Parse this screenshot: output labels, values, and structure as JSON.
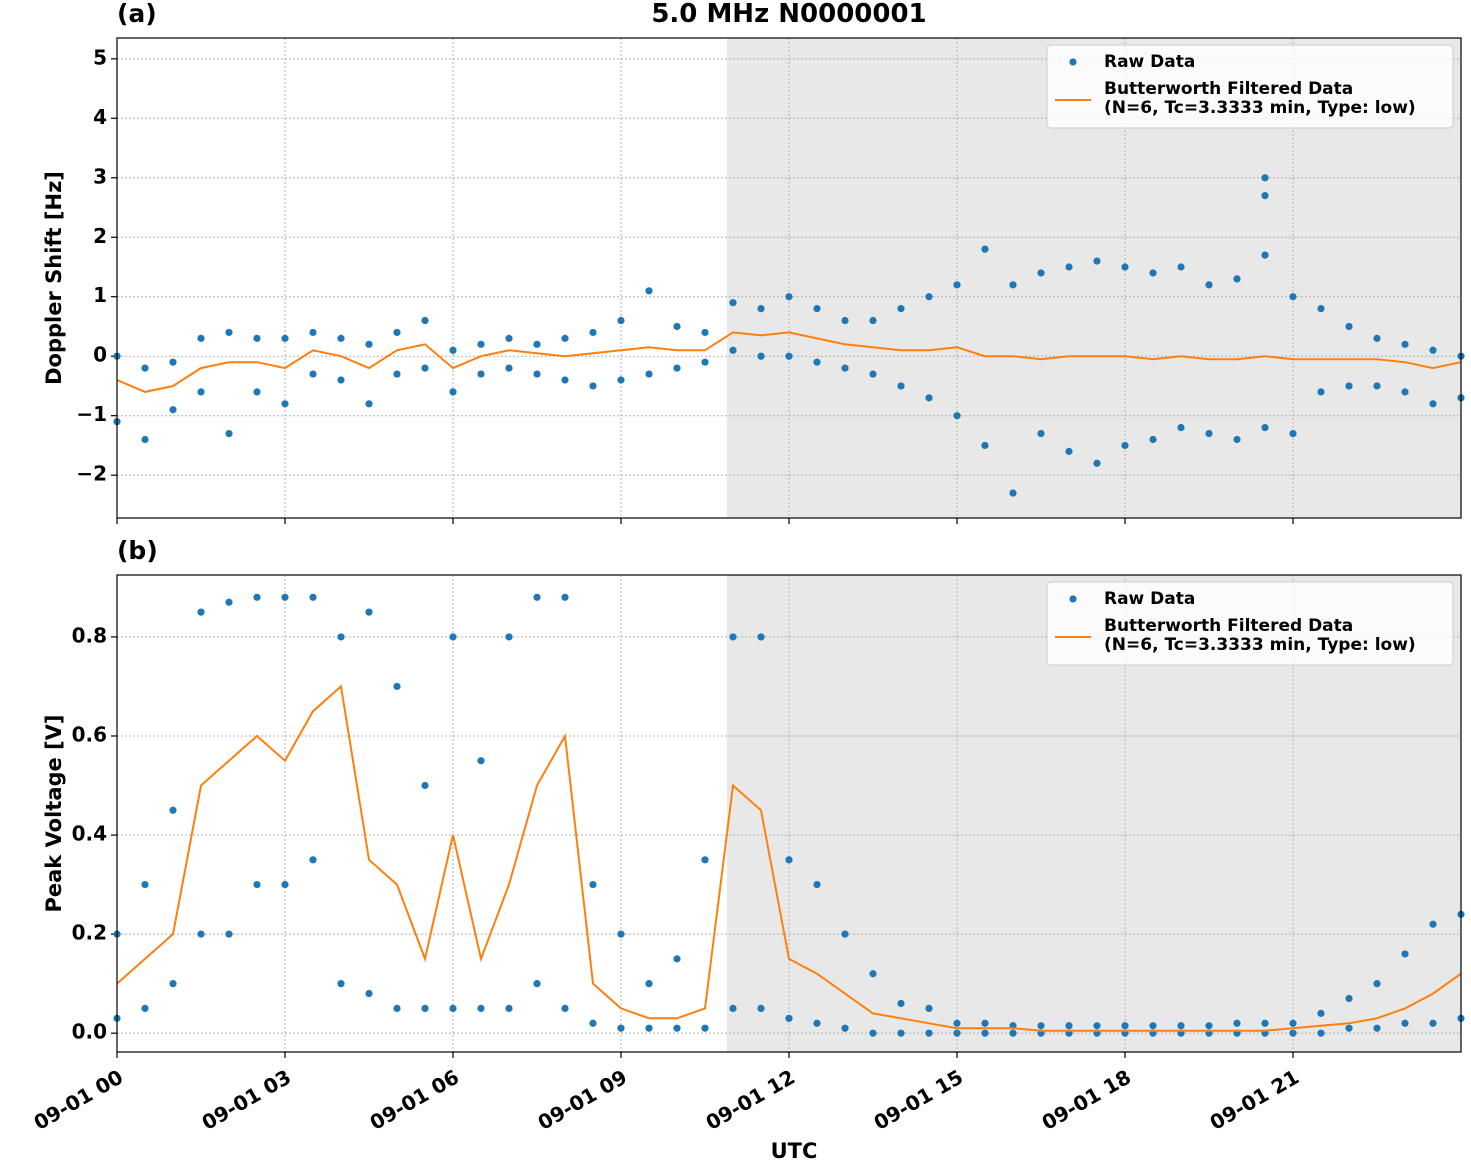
{
  "chart_data": [
    {
      "type": "scatter",
      "label": "(a)",
      "title": "5.0 MHz N0000001",
      "ylabel": "Doppler Shift [Hz]",
      "xlim": [
        0,
        24
      ],
      "xticks": [
        0,
        3,
        6,
        9,
        12,
        15,
        18,
        21
      ],
      "ylim": [
        -2.72,
        5.35
      ],
      "yticks": [
        {
          "value": -2,
          "label": "−2"
        },
        {
          "value": -1,
          "label": "−1"
        },
        0,
        1,
        2,
        3,
        4,
        5
      ],
      "grid": true,
      "legend": "upper right",
      "shade": {
        "xlim": [
          10.89,
          24
        ],
        "color": "#e8e8e8"
      },
      "series": [
        {
          "name": "Raw Data",
          "color": "#1f77b4",
          "mode": "markers",
          "x": [
            0,
            0.5,
            1,
            1.5,
            2,
            2.5,
            3,
            3.5,
            4,
            4.5,
            5,
            5.5,
            6,
            6.5,
            7,
            7.5,
            8,
            8.5,
            9,
            9.5,
            10,
            10.5,
            11,
            11.5,
            12,
            12.5,
            13,
            13.5,
            14,
            14.5,
            15,
            15.5,
            16,
            16.5,
            17,
            17.5,
            18,
            18.5,
            19,
            19.5,
            20,
            20.5,
            21,
            21.5,
            22,
            22.5,
            23,
            23.5,
            24,
            0,
            0.5,
            1,
            1.5,
            2,
            2.5,
            3,
            3.5,
            4,
            4.5,
            5,
            5.5,
            6,
            6.5,
            7,
            7.5,
            8,
            8.5,
            9,
            9.5,
            10,
            10.5,
            11,
            11.5,
            12,
            12.5,
            13,
            13.5,
            14,
            14.5,
            15,
            15.5,
            16,
            16.5,
            17,
            17.5,
            18,
            18.5,
            19,
            19.5,
            20,
            20.5,
            21,
            21.5,
            22,
            22.5,
            23,
            23.5,
            24,
            20.5,
            20.5
          ],
          "values": [
            0.0,
            -0.2,
            -0.1,
            0.3,
            0.4,
            0.3,
            0.3,
            0.4,
            0.3,
            0.2,
            0.4,
            0.6,
            0.1,
            0.2,
            0.3,
            0.2,
            0.3,
            0.4,
            0.6,
            1.1,
            0.5,
            0.4,
            0.9,
            0.8,
            1.0,
            0.8,
            0.6,
            0.6,
            0.8,
            1.0,
            1.2,
            1.8,
            1.2,
            1.4,
            1.5,
            1.6,
            1.5,
            1.4,
            1.5,
            1.2,
            1.3,
            1.7,
            1.0,
            0.8,
            0.5,
            0.3,
            0.2,
            0.1,
            0.0,
            -1.1,
            -1.4,
            -0.9,
            -0.6,
            -1.3,
            -0.6,
            -0.8,
            -0.3,
            -0.4,
            -0.8,
            -0.3,
            -0.2,
            -0.6,
            -0.3,
            -0.2,
            -0.3,
            -0.4,
            -0.5,
            -0.4,
            -0.3,
            -0.2,
            -0.1,
            0.1,
            0.0,
            0.0,
            -0.1,
            -0.2,
            -0.3,
            -0.5,
            -0.7,
            -1.0,
            -1.5,
            -2.3,
            -1.3,
            -1.6,
            -1.8,
            -1.5,
            -1.4,
            -1.2,
            -1.3,
            -1.4,
            -1.2,
            -1.3,
            -0.6,
            -0.5,
            -0.5,
            -0.6,
            -0.8,
            -0.7,
            3.0,
            2.7
          ]
        },
        {
          "name": "Butterworth Filtered Data\n(N=6, Tc=3.3333 min, Type: low)",
          "color": "#ff7f0e",
          "mode": "line",
          "x": [
            0,
            0.5,
            1,
            1.5,
            2,
            2.5,
            3,
            3.5,
            4,
            4.5,
            5,
            5.5,
            6,
            6.5,
            7,
            7.5,
            8,
            8.5,
            9,
            9.5,
            10,
            10.5,
            11,
            11.5,
            12,
            12.5,
            13,
            13.5,
            14,
            14.5,
            15,
            15.5,
            16,
            16.5,
            17,
            17.5,
            18,
            18.5,
            19,
            19.5,
            20,
            20.5,
            21,
            21.5,
            22,
            22.5,
            23,
            23.5,
            24
          ],
          "values": [
            -0.4,
            -0.6,
            -0.5,
            -0.2,
            -0.1,
            -0.1,
            -0.2,
            0.1,
            0.0,
            -0.2,
            0.1,
            0.2,
            -0.2,
            0.0,
            0.1,
            0.05,
            0.0,
            0.05,
            0.1,
            0.15,
            0.1,
            0.1,
            0.4,
            0.35,
            0.4,
            0.3,
            0.2,
            0.15,
            0.1,
            0.1,
            0.15,
            0.0,
            0.0,
            -0.05,
            0.0,
            0.0,
            0.0,
            -0.05,
            0.0,
            -0.05,
            -0.05,
            0.0,
            -0.05,
            -0.05,
            -0.05,
            -0.05,
            -0.1,
            -0.2,
            -0.1
          ]
        }
      ]
    },
    {
      "type": "scatter",
      "label": "(b)",
      "ylabel": "Peak Voltage [V]",
      "xlabel": "UTC",
      "xlim": [
        0,
        24
      ],
      "xticks": [
        {
          "value": 0,
          "label": "09-01 00"
        },
        {
          "value": 3,
          "label": "09-01 03"
        },
        {
          "value": 6,
          "label": "09-01 06"
        },
        {
          "value": 9,
          "label": "09-01 09"
        },
        {
          "value": 12,
          "label": "09-01 12"
        },
        {
          "value": 15,
          "label": "09-01 15"
        },
        {
          "value": 18,
          "label": "09-01 18"
        },
        {
          "value": 21,
          "label": "09-01 21"
        }
      ],
      "ylim": [
        -0.038,
        0.925
      ],
      "yticks": [
        {
          "value": 0,
          "label": "0.0"
        },
        0.2,
        0.4,
        0.6,
        0.8
      ],
      "grid": true,
      "legend": "upper right",
      "shade": {
        "xlim": [
          10.89,
          24
        ],
        "color": "#e8e8e8"
      },
      "series": [
        {
          "name": "Raw Data",
          "color": "#1f77b4",
          "mode": "markers",
          "x": [
            0,
            0.5,
            1,
            1.5,
            2,
            2.5,
            3,
            3.5,
            4,
            4.5,
            5,
            5.5,
            6,
            6.5,
            7,
            7.5,
            8,
            8.5,
            9,
            9.5,
            10,
            10.5,
            11,
            11.5,
            12,
            12.5,
            13,
            13.5,
            14,
            14.5,
            15,
            15.5,
            16,
            16.5,
            17,
            17.5,
            18,
            18.5,
            19,
            19.5,
            20,
            20.5,
            21,
            21.5,
            22,
            22.5,
            23,
            23.5,
            24,
            0,
            0.5,
            1,
            1.5,
            2,
            2.5,
            3,
            3.5,
            4,
            4.5,
            5,
            5.5,
            6,
            6.5,
            7,
            7.5,
            8,
            8.5,
            9,
            9.5,
            10,
            10.5,
            11,
            11.5,
            12,
            12.5,
            13,
            13.5,
            14,
            14.5,
            15,
            15.5,
            16,
            16.5,
            17,
            17.5,
            18,
            18.5,
            19,
            19.5,
            20,
            20.5,
            21,
            21.5,
            22,
            22.5,
            23,
            23.5,
            24
          ],
          "values": [
            0.2,
            0.3,
            0.45,
            0.85,
            0.87,
            0.88,
            0.88,
            0.88,
            0.8,
            0.85,
            0.7,
            0.5,
            0.8,
            0.55,
            0.8,
            0.88,
            0.88,
            0.3,
            0.2,
            0.1,
            0.15,
            0.35,
            0.8,
            0.8,
            0.35,
            0.3,
            0.2,
            0.12,
            0.06,
            0.05,
            0.02,
            0.02,
            0.015,
            0.015,
            0.015,
            0.015,
            0.015,
            0.015,
            0.015,
            0.015,
            0.02,
            0.02,
            0.02,
            0.04,
            0.07,
            0.1,
            0.16,
            0.22,
            0.24,
            0.03,
            0.05,
            0.1,
            0.2,
            0.2,
            0.3,
            0.3,
            0.35,
            0.1,
            0.08,
            0.05,
            0.05,
            0.05,
            0.05,
            0.05,
            0.1,
            0.05,
            0.02,
            0.01,
            0.01,
            0.01,
            0.01,
            0.05,
            0.05,
            0.03,
            0.02,
            0.01,
            0.0,
            0.0,
            0.0,
            0.0,
            0.0,
            0.0,
            0.0,
            0.0,
            0.0,
            0.0,
            0.0,
            0.0,
            0.0,
            0.0,
            0.0,
            0.0,
            0.0,
            0.01,
            0.01,
            0.02,
            0.02,
            0.03
          ]
        },
        {
          "name": "Butterworth Filtered Data\n(N=6, Tc=3.3333 min, Type: low)",
          "color": "#ff7f0e",
          "mode": "line",
          "x": [
            0,
            0.5,
            1,
            1.5,
            2,
            2.5,
            3,
            3.5,
            4,
            4.5,
            5,
            5.5,
            6,
            6.5,
            7,
            7.5,
            8,
            8.5,
            9,
            9.5,
            10,
            10.5,
            11,
            11.5,
            12,
            12.5,
            13,
            13.5,
            14,
            14.5,
            15,
            15.5,
            16,
            16.5,
            17,
            17.5,
            18,
            18.5,
            19,
            19.5,
            20,
            20.5,
            21,
            21.5,
            22,
            22.5,
            23,
            23.5,
            24
          ],
          "values": [
            0.1,
            0.15,
            0.2,
            0.5,
            0.55,
            0.6,
            0.55,
            0.65,
            0.7,
            0.35,
            0.3,
            0.15,
            0.4,
            0.15,
            0.3,
            0.5,
            0.6,
            0.1,
            0.05,
            0.03,
            0.03,
            0.05,
            0.5,
            0.45,
            0.15,
            0.12,
            0.08,
            0.04,
            0.03,
            0.02,
            0.01,
            0.01,
            0.01,
            0.005,
            0.005,
            0.005,
            0.005,
            0.005,
            0.005,
            0.005,
            0.005,
            0.005,
            0.01,
            0.015,
            0.02,
            0.03,
            0.05,
            0.08,
            0.12
          ]
        }
      ]
    }
  ]
}
